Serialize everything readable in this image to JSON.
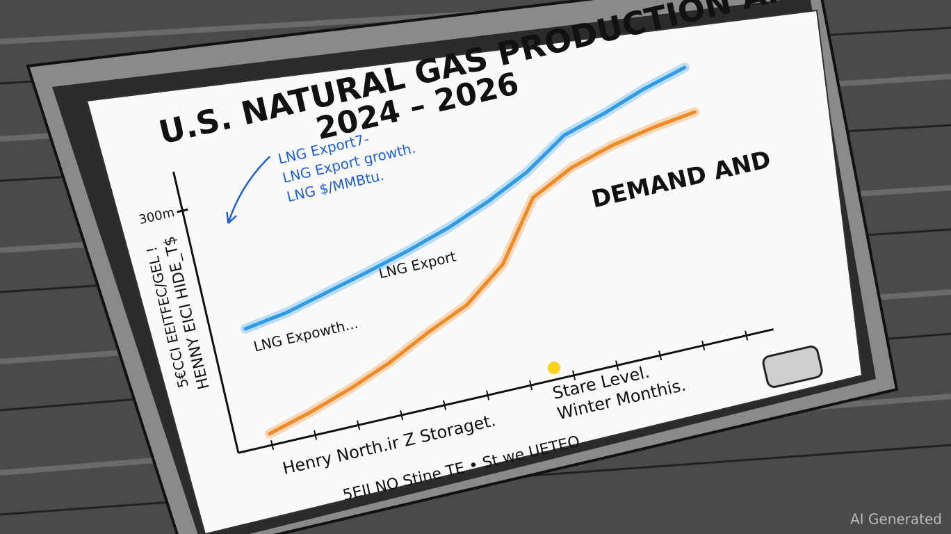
{
  "chart_data": {
    "type": "line",
    "title": "U.S. NATURAL GAS PRODUCTION AND",
    "subtitle": "2024 – 2026",
    "ylabel": [
      "HENNY EICI HIDE_T$",
      "5€CCI EEITFEC/GEL !"
    ],
    "xlabel": "Henry North.ir Z Storaget.",
    "annotations": [
      "DEMAND AND",
      "LNG Export7-",
      "LNG Export growth.",
      "LNG $/MMBtu.",
      "LNG Export",
      "LNG Expowth...",
      "Stare Level.",
      "Winter Monthis.",
      "5EII NO Stine TE • St.we UETEO"
    ],
    "watermark": "AI Generated",
    "categories": [
      null,
      null,
      null,
      null,
      null,
      null,
      null,
      null,
      null,
      null,
      null,
      null
    ],
    "series": [
      {
        "color": "#2f9be6",
        "values": [
          144,
          152,
          165,
          178,
          192,
          208,
          228,
          252,
          285,
          300,
          318,
          332
        ]
      },
      {
        "color": "#f08a24",
        "values": [
          14,
          28,
          45,
          65,
          90,
          112,
          150,
          220,
          245,
          260,
          270,
          277
        ]
      }
    ],
    "ylim": [
      0,
      340
    ],
    "yticks": [
      {
        "value": 300,
        "label": "300m"
      }
    ]
  }
}
